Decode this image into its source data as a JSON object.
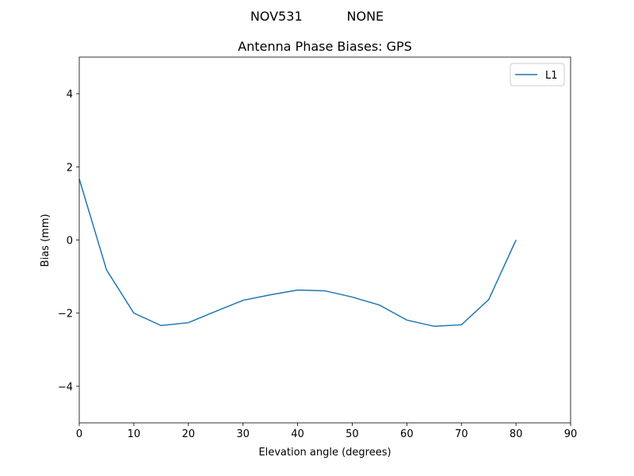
{
  "chart_data": {
    "type": "line",
    "suptitle": "NOV531           NONE",
    "title": "Antenna Phase Biases: GPS",
    "x_label": "Elevation angle (degrees)",
    "y_label": "Bias (mm)",
    "x": [
      0,
      5,
      10,
      15,
      20,
      25,
      30,
      35,
      40,
      45,
      50,
      55,
      60,
      65,
      70,
      75,
      80
    ],
    "series": [
      {
        "name": "L1",
        "color": "#1f77b4",
        "values": [
          1.67,
          -0.82,
          -2.0,
          -2.34,
          -2.26,
          -1.95,
          -1.65,
          -1.5,
          -1.37,
          -1.39,
          -1.56,
          -1.78,
          -2.19,
          -2.36,
          -2.32,
          -1.63,
          0.0
        ]
      }
    ],
    "xlim": [
      0,
      90
    ],
    "xticks": [
      0,
      10,
      20,
      30,
      40,
      50,
      60,
      70,
      80,
      90
    ],
    "ylim": [
      -5,
      5
    ],
    "yticks": [
      {
        "value": -4,
        "label": "−4"
      },
      {
        "value": -2,
        "label": "−2"
      },
      0,
      2,
      4
    ],
    "legend": "upper right"
  }
}
